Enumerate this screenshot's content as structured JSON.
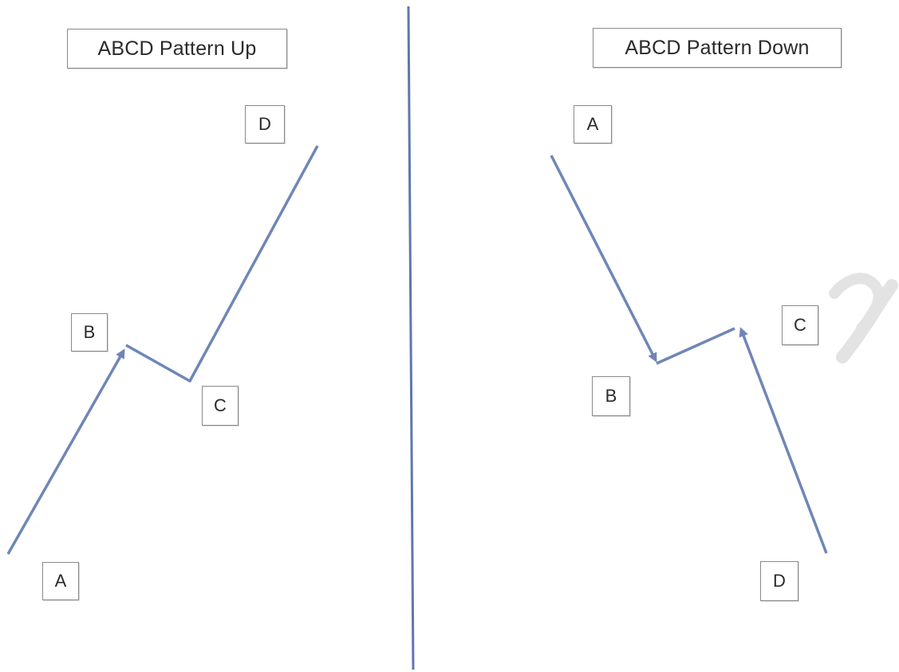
{
  "panels": {
    "up": {
      "title": "ABCD Pattern Up",
      "points": {
        "a": "A",
        "b": "B",
        "c": "C",
        "d": "D"
      }
    },
    "down": {
      "title": "ABCD Pattern Down",
      "points": {
        "a": "A",
        "b": "B",
        "c": "C",
        "d": "D"
      }
    }
  },
  "colors": {
    "line": "#6f86b6",
    "divider": "#5f77ad",
    "box_border": "#8a8a8a",
    "text": "#2a2a2a",
    "watermark": "#e3e3e3"
  }
}
